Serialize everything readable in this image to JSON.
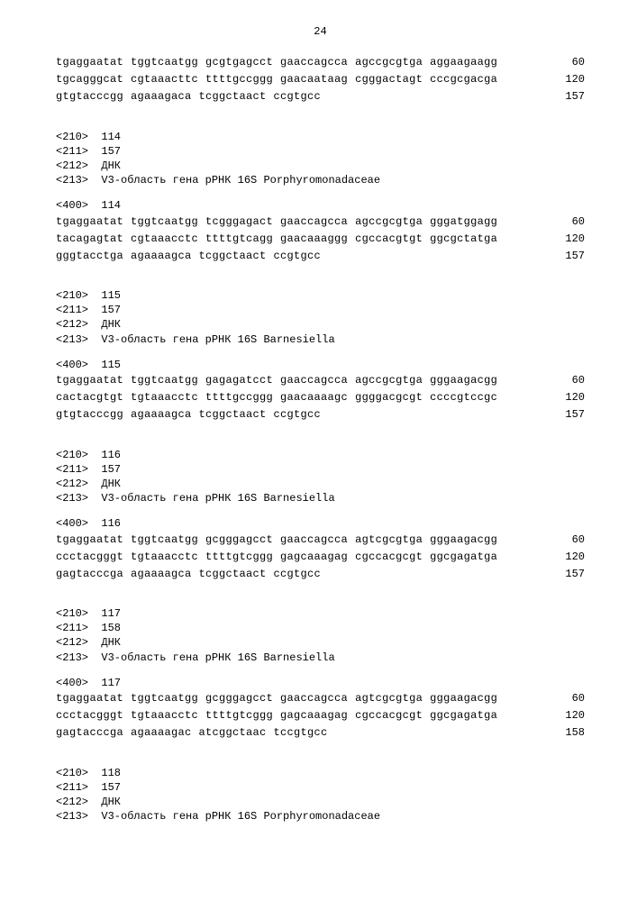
{
  "page_number": "24",
  "font": {
    "family": "Courier New, monospace",
    "size_pt": 9,
    "color": "#000000"
  },
  "sequences": [
    {
      "lines": [
        {
          "groups": [
            "tgaggaatat",
            "tggtcaatgg",
            "gcgtgagcct",
            "gaaccagcca",
            "agccgcgtga",
            "aggaagaagg"
          ],
          "pos": "60"
        },
        {
          "groups": [
            "tgcagggcat",
            "cgtaaacttc",
            "ttttgccggg",
            "gaacaataag",
            "cgggactagt",
            "cccgcgacga"
          ],
          "pos": "120"
        },
        {
          "groups": [
            "gtgtacccgg",
            "agaaagaca",
            "tcggctaact",
            "ccgtgcc"
          ],
          "pos": "157"
        }
      ],
      "meta": [
        "<210>  114",
        "<211>  157",
        "<212>  ДНК",
        "<213>  V3-область гена рРНК 16S Porphyromonadaceae"
      ],
      "after_meta": "<400>  114"
    },
    {
      "lines": [
        {
          "groups": [
            "tgaggaatat",
            "tggtcaatgg",
            "tcgggagact",
            "gaaccagcca",
            "agccgcgtga",
            "gggatggagg"
          ],
          "pos": "60"
        },
        {
          "groups": [
            "tacagagtat",
            "cgtaaacctc",
            "ttttgtcagg",
            "gaacaaaggg",
            "cgccacgtgt",
            "ggcgctatga"
          ],
          "pos": "120"
        },
        {
          "groups": [
            "gggtacctga",
            "agaaaagca",
            "tcggctaact",
            "ccgtgcc"
          ],
          "pos": "157"
        }
      ],
      "meta": [
        "<210>  115",
        "<211>  157",
        "<212>  ДНК",
        "<213>  V3-область гена рРНК 16S Barnesiella"
      ],
      "after_meta": "<400>  115"
    },
    {
      "lines": [
        {
          "groups": [
            "tgaggaatat",
            "tggtcaatgg",
            "gagagatcct",
            "gaaccagcca",
            "agccgcgtga",
            "gggaagacgg"
          ],
          "pos": "60"
        },
        {
          "groups": [
            "cactacgtgt",
            "tgtaaacctc",
            "ttttgccggg",
            "gaacaaaagc",
            "ggggacgcgt",
            "ccccgtccgc"
          ],
          "pos": "120"
        },
        {
          "groups": [
            "gtgtacccgg",
            "agaaaagca",
            "tcggctaact",
            "ccgtgcc"
          ],
          "pos": "157"
        }
      ],
      "meta": [
        "<210>  116",
        "<211>  157",
        "<212>  ДНК",
        "<213>  V3-область гена рРНК 16S Barnesiella"
      ],
      "after_meta": "<400>  116"
    },
    {
      "lines": [
        {
          "groups": [
            "tgaggaatat",
            "tggtcaatgg",
            "gcgggagcct",
            "gaaccagcca",
            "agtcgcgtga",
            "gggaagacgg"
          ],
          "pos": "60"
        },
        {
          "groups": [
            "ccctacgggt",
            "tgtaaacctc",
            "ttttgtcggg",
            "gagcaaagag",
            "cgccacgcgt",
            "ggcgagatga"
          ],
          "pos": "120"
        },
        {
          "groups": [
            "gagtacccga",
            "agaaaagca",
            "tcggctaact",
            "ccgtgcc"
          ],
          "pos": "157"
        }
      ],
      "meta": [
        "<210>  117",
        "<211>  158",
        "<212>  ДНК",
        "<213>  V3-область гена рРНК 16S Barnesiella"
      ],
      "after_meta": "<400>  117"
    },
    {
      "lines": [
        {
          "groups": [
            "tgaggaatat",
            "tggtcaatgg",
            "gcgggagcct",
            "gaaccagcca",
            "agtcgcgtga",
            "gggaagacgg"
          ],
          "pos": "60"
        },
        {
          "groups": [
            "ccctacgggt",
            "tgtaaacctc",
            "ttttgtcggg",
            "gagcaaagag",
            "cgccacgcgt",
            "ggcgagatga"
          ],
          "pos": "120"
        },
        {
          "groups": [
            "gagtacccga",
            "agaaaagac",
            "atcggctaac",
            "tccgtgcc"
          ],
          "pos": "158"
        }
      ],
      "meta": [
        "<210>  118",
        "<211>  157",
        "<212>  ДНК",
        "<213>  V3-область гена рРНК 16S Porphyromonadaceae"
      ],
      "after_meta": null
    }
  ]
}
